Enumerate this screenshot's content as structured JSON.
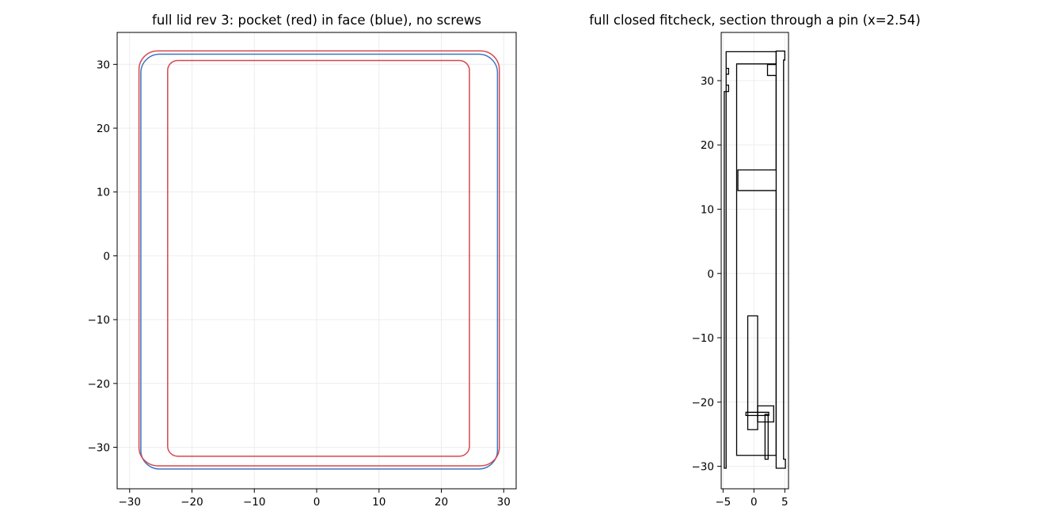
{
  "chart_data": [
    {
      "type": "line",
      "title": "full lid rev 3: pocket (red) in face (blue), no screws",
      "xlabel": "",
      "ylabel": "",
      "xlim": [
        -32,
        32
      ],
      "ylim": [
        -36.5,
        35
      ],
      "xticks": [
        -30,
        -20,
        -10,
        0,
        10,
        20,
        30
      ],
      "yticks": [
        -30,
        -20,
        -10,
        0,
        10,
        20,
        30
      ],
      "grid": true,
      "equal_aspect": true,
      "series": [
        {
          "color": "#3a76c4",
          "shape": "rounded_rect",
          "x_range": [
            -28.2,
            29.0
          ],
          "y_range": [
            -33.4,
            31.6
          ],
          "corner_radius": 3.0
        },
        {
          "color": "#d9474b",
          "shape": "rounded_rect",
          "x_range": [
            -28.5,
            29.3
          ],
          "y_range": [
            -32.9,
            32.1
          ],
          "corner_radius": 3.0
        },
        {
          "color": "#d9474b",
          "shape": "rounded_rect",
          "x_range": [
            -23.9,
            24.5
          ],
          "y_range": [
            -31.4,
            30.6
          ],
          "corner_radius": 1.6
        }
      ]
    },
    {
      "type": "line",
      "title": "full closed fitcheck, section through a pin (x=2.54)",
      "xlabel": "",
      "ylabel": "",
      "xlim": [
        -5.3,
        5.6
      ],
      "ylim": [
        -33.5,
        37.5
      ],
      "xticks": [
        -5,
        0,
        5
      ],
      "yticks": [
        -30,
        -20,
        -10,
        0,
        10,
        20,
        30
      ],
      "grid": true,
      "equal_aspect": true,
      "series": [
        {
          "color": "#000000",
          "name": "",
          "paths": [
            {
              "closed": true,
              "points": [
                [
                  -4.8,
                  -30.3
                ],
                [
                  -4.8,
                  28.3
                ],
                [
                  -4.1,
                  28.3
                ],
                [
                  -4.1,
                  29.3
                ],
                [
                  -4.5,
                  29.3
                ],
                [
                  -4.5,
                  31.0
                ],
                [
                  -4.1,
                  31.0
                ],
                [
                  -4.1,
                  31.9
                ],
                [
                  -4.5,
                  31.9
                ],
                [
                  -4.5,
                  34.5
                ],
                [
                  3.6,
                  34.5
                ],
                [
                  3.6,
                  32.5
                ],
                [
                  2.2,
                  32.5
                ],
                [
                  2.2,
                  30.8
                ],
                [
                  3.6,
                  30.8
                ],
                [
                  3.6,
                  16.1
                ],
                [
                  -2.6,
                  16.1
                ],
                [
                  -2.6,
                  12.9
                ],
                [
                  3.6,
                  12.9
                ],
                [
                  3.6,
                  -28.3
                ],
                [
                  -2.8,
                  -28.3
                ],
                [
                  -2.8,
                  32.6
                ],
                [
                  3.6,
                  32.6
                ],
                [
                  3.6,
                  34.5
                ],
                [
                  -4.5,
                  34.5
                ],
                [
                  -4.5,
                  -30.3
                ]
              ]
            },
            {
              "closed": true,
              "points": [
                [
                  -1.0,
                  -24.3
                ],
                [
                  -1.0,
                  -6.6
                ],
                [
                  0.6,
                  -6.6
                ],
                [
                  0.6,
                  -24.3
                ]
              ]
            },
            {
              "closed": true,
              "points": [
                [
                  0.6,
                  -23.1
                ],
                [
                  0.6,
                  -20.6
                ],
                [
                  3.2,
                  -20.6
                ],
                [
                  3.2,
                  -23.1
                ]
              ]
            },
            {
              "closed": true,
              "points": [
                [
                  -1.3,
                  -22.1
                ],
                [
                  -1.3,
                  -21.6
                ],
                [
                  2.4,
                  -21.6
                ],
                [
                  2.4,
                  -22.1
                ]
              ]
            },
            {
              "closed": true,
              "points": [
                [
                  1.8,
                  -28.9
                ],
                [
                  1.8,
                  -21.9
                ],
                [
                  2.3,
                  -21.9
                ],
                [
                  2.3,
                  -28.9
                ]
              ]
            },
            {
              "closed": true,
              "points": [
                [
                  3.6,
                  -30.3
                ],
                [
                  3.6,
                  34.6
                ],
                [
                  5.0,
                  34.6
                ],
                [
                  5.0,
                  33.2
                ],
                [
                  4.8,
                  33.2
                ],
                [
                  4.8,
                  -28.9
                ],
                [
                  5.1,
                  -28.9
                ],
                [
                  5.1,
                  -30.3
                ]
              ]
            }
          ]
        }
      ]
    }
  ]
}
